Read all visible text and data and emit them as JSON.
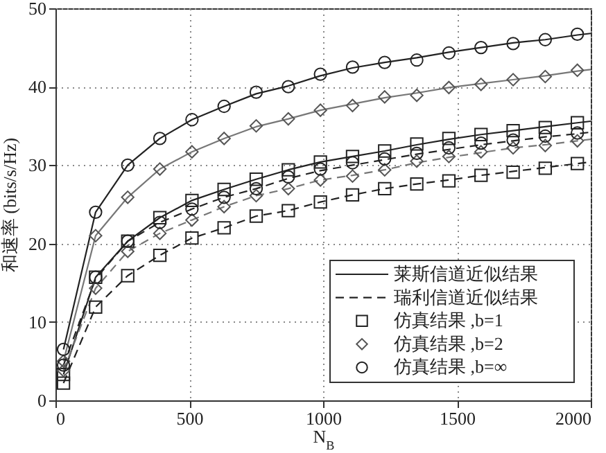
{
  "chart_data": {
    "type": "line",
    "xlabel": "N$_{B}$",
    "ylabel": "和速率 (bits/s/Hz)",
    "xlim": [
      0,
      2000
    ],
    "ylim": [
      0,
      50
    ],
    "xticks": [
      0,
      500,
      1000,
      1500,
      2000
    ],
    "yticks": [
      0,
      10,
      20,
      30,
      40,
      50
    ],
    "grid": true,
    "legend": "bottom right",
    "x": [
      30,
      150,
      270,
      390,
      510,
      630,
      750,
      870,
      990,
      1110,
      1230,
      1350,
      1470,
      1590,
      1710,
      1830,
      1950
    ],
    "series": [
      {
        "name": "莱斯信道近似结果",
        "color": "#222222",
        "line_style": "solid",
        "x": [
          30,
          150,
          270,
          390,
          510,
          630,
          750,
          870,
          990,
          1110,
          1230,
          1350,
          1470,
          1590,
          1710,
          1830,
          1950,
          2000
        ],
        "values": [
          6.5,
          24.0,
          30.0,
          33.4,
          35.8,
          37.5,
          39.1,
          40.1,
          41.4,
          42.4,
          43.1,
          43.7,
          44.4,
          45.0,
          45.6,
          46.0,
          46.6,
          46.8
        ]
      },
      {
        "color": "#777777",
        "line_style": "solid",
        "x": [
          30,
          150,
          270,
          390,
          510,
          630,
          750,
          870,
          990,
          1110,
          1230,
          1350,
          1470,
          1590,
          1710,
          1830,
          1950,
          2000
        ],
        "values": [
          5.0,
          21.0,
          25.9,
          29.5,
          31.7,
          33.4,
          34.9,
          35.9,
          37.0,
          37.8,
          38.6,
          39.2,
          39.9,
          40.4,
          40.9,
          41.4,
          42.0,
          42.2
        ]
      },
      {
        "color": "#222222",
        "line_style": "solid",
        "x": [
          30,
          150,
          270,
          390,
          510,
          630,
          750,
          870,
          990,
          1110,
          1230,
          1350,
          1470,
          1590,
          1710,
          1830,
          1950,
          2000
        ],
        "values": [
          3.3,
          15.7,
          20.3,
          23.3,
          25.5,
          26.9,
          28.2,
          29.4,
          30.4,
          31.1,
          31.8,
          32.6,
          33.3,
          33.9,
          34.4,
          34.9,
          35.4,
          35.6
        ]
      },
      {
        "name": "瑞利信道近似结果",
        "color": "#222222",
        "line_style": "dashed",
        "x": [
          30,
          150,
          270,
          390,
          510,
          630,
          750,
          870,
          990,
          1110,
          1230,
          1350,
          1470,
          1590,
          1710,
          1830,
          1950,
          2000
        ],
        "values": [
          4.5,
          15.5,
          20.3,
          22.7,
          24.4,
          25.9,
          27.0,
          28.3,
          29.3,
          30.0,
          30.7,
          31.4,
          32.0,
          32.6,
          33.1,
          33.6,
          34.0,
          34.2
        ]
      },
      {
        "color": "#777777",
        "line_style": "dashed",
        "x": [
          30,
          150,
          270,
          390,
          510,
          630,
          750,
          870,
          990,
          1110,
          1230,
          1350,
          1470,
          1590,
          1710,
          1830,
          1950,
          2000
        ],
        "values": [
          3.8,
          14.3,
          19.0,
          21.3,
          23.0,
          24.7,
          26.1,
          27.0,
          28.1,
          28.7,
          29.4,
          30.3,
          31.0,
          31.6,
          32.2,
          32.6,
          33.1,
          33.3
        ]
      },
      {
        "color": "#222222",
        "line_style": "dashed",
        "x": [
          30,
          150,
          270,
          390,
          510,
          630,
          750,
          870,
          990,
          1110,
          1230,
          1350,
          1470,
          1590,
          1710,
          1830,
          1950,
          2000
        ],
        "values": [
          2.2,
          11.9,
          15.9,
          18.5,
          20.7,
          22.0,
          23.5,
          24.2,
          25.3,
          26.2,
          27.0,
          27.6,
          28.1,
          28.7,
          29.2,
          29.7,
          30.2,
          30.4
        ]
      },
      {
        "type": "scatter",
        "name": "仿真结果 ,b=1",
        "marker": "square",
        "color": "#222222",
        "values": [
          3.3,
          15.7,
          20.3,
          23.3,
          25.5,
          26.9,
          28.2,
          29.4,
          30.4,
          31.1,
          31.8,
          32.7,
          33.4,
          33.9,
          34.4,
          34.8,
          35.4
        ]
      },
      {
        "type": "scatter",
        "name": "仿真结果 ,b=2",
        "marker": "diamond",
        "color": "#555555",
        "values": [
          5.0,
          21.0,
          25.9,
          29.5,
          31.7,
          33.4,
          35.0,
          35.9,
          37.0,
          37.6,
          38.7,
          38.9,
          39.9,
          40.3,
          40.9,
          41.3,
          42.1
        ]
      },
      {
        "type": "scatter",
        "name": "仿真结果 ,b=∞",
        "marker": "circle",
        "color": "#222222",
        "values": [
          6.5,
          24.0,
          30.0,
          33.4,
          35.8,
          37.5,
          39.3,
          40.0,
          41.6,
          42.5,
          43.1,
          43.4,
          44.3,
          45.0,
          45.5,
          46.0,
          46.7
        ]
      },
      {
        "type": "scatter",
        "marker": "square",
        "color": "#222222",
        "values": [
          2.2,
          11.9,
          15.9,
          18.5,
          20.7,
          22.0,
          23.5,
          24.2,
          25.3,
          26.2,
          27.0,
          27.6,
          28.0,
          28.7,
          29.1,
          29.6,
          30.2
        ]
      },
      {
        "type": "scatter",
        "marker": "diamond",
        "color": "#555555",
        "values": [
          3.8,
          14.3,
          19.0,
          21.3,
          23.0,
          24.7,
          26.1,
          27.0,
          28.1,
          28.6,
          29.4,
          30.5,
          31.1,
          31.7,
          32.2,
          32.5,
          33.1
        ]
      },
      {
        "type": "scatter",
        "marker": "circle",
        "color": "#222222",
        "values": [
          4.5,
          15.7,
          20.3,
          22.7,
          24.4,
          25.9,
          27.0,
          28.5,
          29.5,
          30.3,
          30.8,
          31.5,
          32.2,
          32.8,
          33.2,
          33.7,
          34.1
        ]
      }
    ]
  }
}
